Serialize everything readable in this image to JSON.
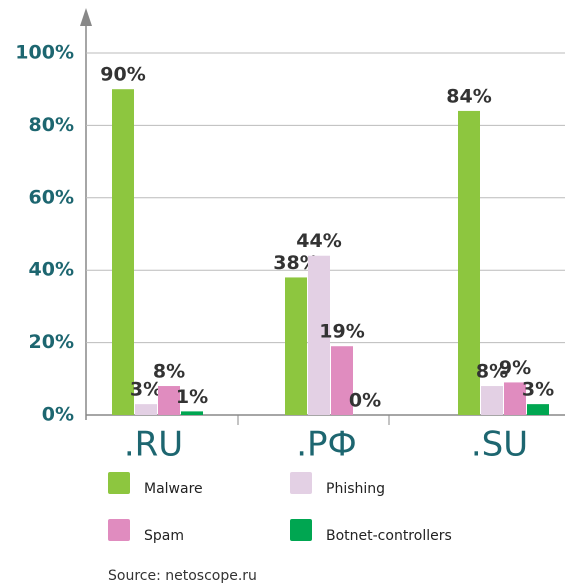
{
  "chart_data": {
    "type": "bar",
    "categories": [
      ".RU",
      ".РФ",
      ".SU"
    ],
    "series": [
      {
        "name": "Malware",
        "color": "#8dc63f",
        "values": [
          90,
          38,
          84
        ],
        "value_labels": [
          "90%",
          "38%",
          "84%"
        ]
      },
      {
        "name": "Phishing",
        "color": "#e3d0e4",
        "values": [
          3,
          44,
          8
        ],
        "value_labels": [
          "3%",
          "44%",
          "8%"
        ]
      },
      {
        "name": "Spam",
        "color": "#e08cbf",
        "values": [
          8,
          19,
          9
        ],
        "value_labels": [
          "8%",
          "19%",
          "9%"
        ]
      },
      {
        "name": "Botnet-controllers",
        "color": "#00a651",
        "values": [
          1,
          0,
          3
        ],
        "value_labels": [
          "1%",
          "0%",
          "3%"
        ]
      }
    ],
    "ylim": [
      0,
      100
    ],
    "yticks": [
      {
        "value": 0,
        "label": "0%"
      },
      {
        "value": 20,
        "label": "20%"
      },
      {
        "value": 40,
        "label": "40%"
      },
      {
        "value": 60,
        "label": "60%"
      },
      {
        "value": 80,
        "label": "80%"
      },
      {
        "value": 100,
        "label": "100%"
      }
    ],
    "grid": true,
    "source": "Source: netoscope.ru"
  }
}
